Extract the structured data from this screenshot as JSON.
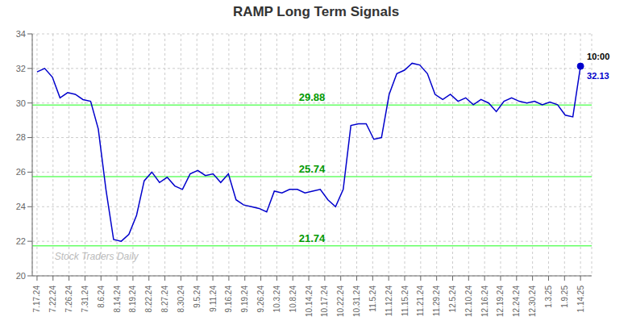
{
  "chart_data": {
    "type": "line",
    "title": "RAMP Long Term Signals",
    "color": "#0000cc",
    "marker": "last_point",
    "grid": true,
    "xlim": [
      -0.3,
      34.7
    ],
    "xticks": [
      {
        "value": 0,
        "label": "7.17.24"
      },
      {
        "value": 1,
        "label": "7.22.24"
      },
      {
        "value": 2,
        "label": "7.26.24"
      },
      {
        "value": 3,
        "label": "7.31.24"
      },
      {
        "value": 4,
        "label": "8.6.24"
      },
      {
        "value": 5,
        "label": "8.14.24"
      },
      {
        "value": 6,
        "label": "8.19.24"
      },
      {
        "value": 7,
        "label": "8.22.24"
      },
      {
        "value": 8,
        "label": "8.27.24"
      },
      {
        "value": 9,
        "label": "8.30.24"
      },
      {
        "value": 10,
        "label": "9.5.24"
      },
      {
        "value": 11,
        "label": "9.11.24"
      },
      {
        "value": 12,
        "label": "9.16.24"
      },
      {
        "value": 13,
        "label": "9.19.24"
      },
      {
        "value": 14,
        "label": "9.26.24"
      },
      {
        "value": 15,
        "label": "10.3.24"
      },
      {
        "value": 16,
        "label": "10.8.24"
      },
      {
        "value": 17,
        "label": "10.14.24"
      },
      {
        "value": 18,
        "label": "10.17.24"
      },
      {
        "value": 19,
        "label": "10.22.24"
      },
      {
        "value": 20,
        "label": "10.31.24"
      },
      {
        "value": 21,
        "label": "11.5.24"
      },
      {
        "value": 22,
        "label": "11.12.24"
      },
      {
        "value": 23,
        "label": "11.15.24"
      },
      {
        "value": 24,
        "label": "11.21.24"
      },
      {
        "value": 25,
        "label": "11.29.24"
      },
      {
        "value": 26,
        "label": "12.5.24"
      },
      {
        "value": 27,
        "label": "12.10.24"
      },
      {
        "value": 28,
        "label": "12.16.24"
      },
      {
        "value": 29,
        "label": "12.19.24"
      },
      {
        "value": 30,
        "label": "12.24.24"
      },
      {
        "value": 31,
        "label": "12.30.24"
      },
      {
        "value": 32,
        "label": "1.3.25"
      },
      {
        "value": 33,
        "label": "1.9.25"
      },
      {
        "value": 34,
        "label": "1.14.25"
      }
    ],
    "ylim": [
      20,
      34
    ],
    "yticks": [
      20,
      22,
      24,
      26,
      28,
      30,
      32,
      34
    ],
    "x": [
      0,
      0.4789,
      0.9577,
      1.4366,
      1.9155,
      2.3944,
      2.8732,
      3.3521,
      3.831,
      4.3099,
      4.7887,
      5.2676,
      5.7465,
      6.2254,
      6.7042,
      7.1831,
      7.662,
      8.1408,
      8.6197,
      9.0986,
      9.5775,
      10.0563,
      10.5352,
      11.0141,
      11.493,
      11.9718,
      12.4507,
      12.9296,
      13.4085,
      13.8873,
      14.3662,
      14.8451,
      15.3239,
      15.8028,
      16.2817,
      16.7606,
      17.2394,
      17.7183,
      18.1972,
      18.6761,
      19.1549,
      19.6338,
      20.1127,
      20.5915,
      21.0704,
      21.5493,
      22.0282,
      22.507,
      22.9859,
      23.4648,
      23.9437,
      24.4225,
      24.9014,
      25.3803,
      25.8592,
      26.338,
      26.8169,
      27.2958,
      27.7746,
      28.2535,
      28.7324,
      29.2113,
      29.6901,
      30.169,
      30.6479,
      31.1268,
      31.6056,
      32.0845,
      32.5634,
      33.0423,
      33.5211,
      34
    ],
    "values": [
      31.8,
      32.0,
      31.5,
      30.3,
      30.6,
      30.5,
      30.2,
      30.1,
      28.5,
      25.0,
      22.1,
      22.0,
      22.4,
      23.5,
      25.5,
      26.0,
      25.4,
      25.7,
      25.2,
      25.0,
      25.9,
      26.1,
      25.8,
      25.9,
      25.4,
      25.9,
      24.4,
      24.1,
      24.0,
      23.9,
      23.7,
      24.9,
      24.8,
      25.0,
      25.0,
      24.8,
      24.9,
      25.0,
      24.4,
      24.0,
      25.0,
      28.7,
      28.8,
      28.8,
      27.9,
      28.0,
      30.5,
      31.7,
      31.9,
      32.3,
      32.2,
      31.7,
      30.5,
      30.2,
      30.5,
      30.1,
      30.3,
      29.9,
      30.2,
      30.0,
      29.5,
      30.1,
      30.3,
      30.1,
      30.0,
      30.1,
      29.9,
      30.05,
      29.9,
      29.3,
      29.2,
      32.13
    ],
    "reference_lines": [
      {
        "y": 21.74,
        "label": "21.74",
        "color": "#66ff66",
        "label_color": "#009900"
      },
      {
        "y": 25.74,
        "label": "25.74",
        "color": "#66ff66",
        "label_color": "#009900"
      },
      {
        "y": 29.88,
        "label": "29.88",
        "color": "#66ff66",
        "label_color": "#009900"
      }
    ],
    "annotations": [
      {
        "text": "10:00",
        "x": 34,
        "y": 32.13,
        "color": "#000000"
      },
      {
        "text": "32.13",
        "x": 34,
        "y": 32.13,
        "color": "#0000cc"
      }
    ],
    "watermark": {
      "text": "Stock Traders Daily",
      "color": "#bbbbbb"
    }
  }
}
